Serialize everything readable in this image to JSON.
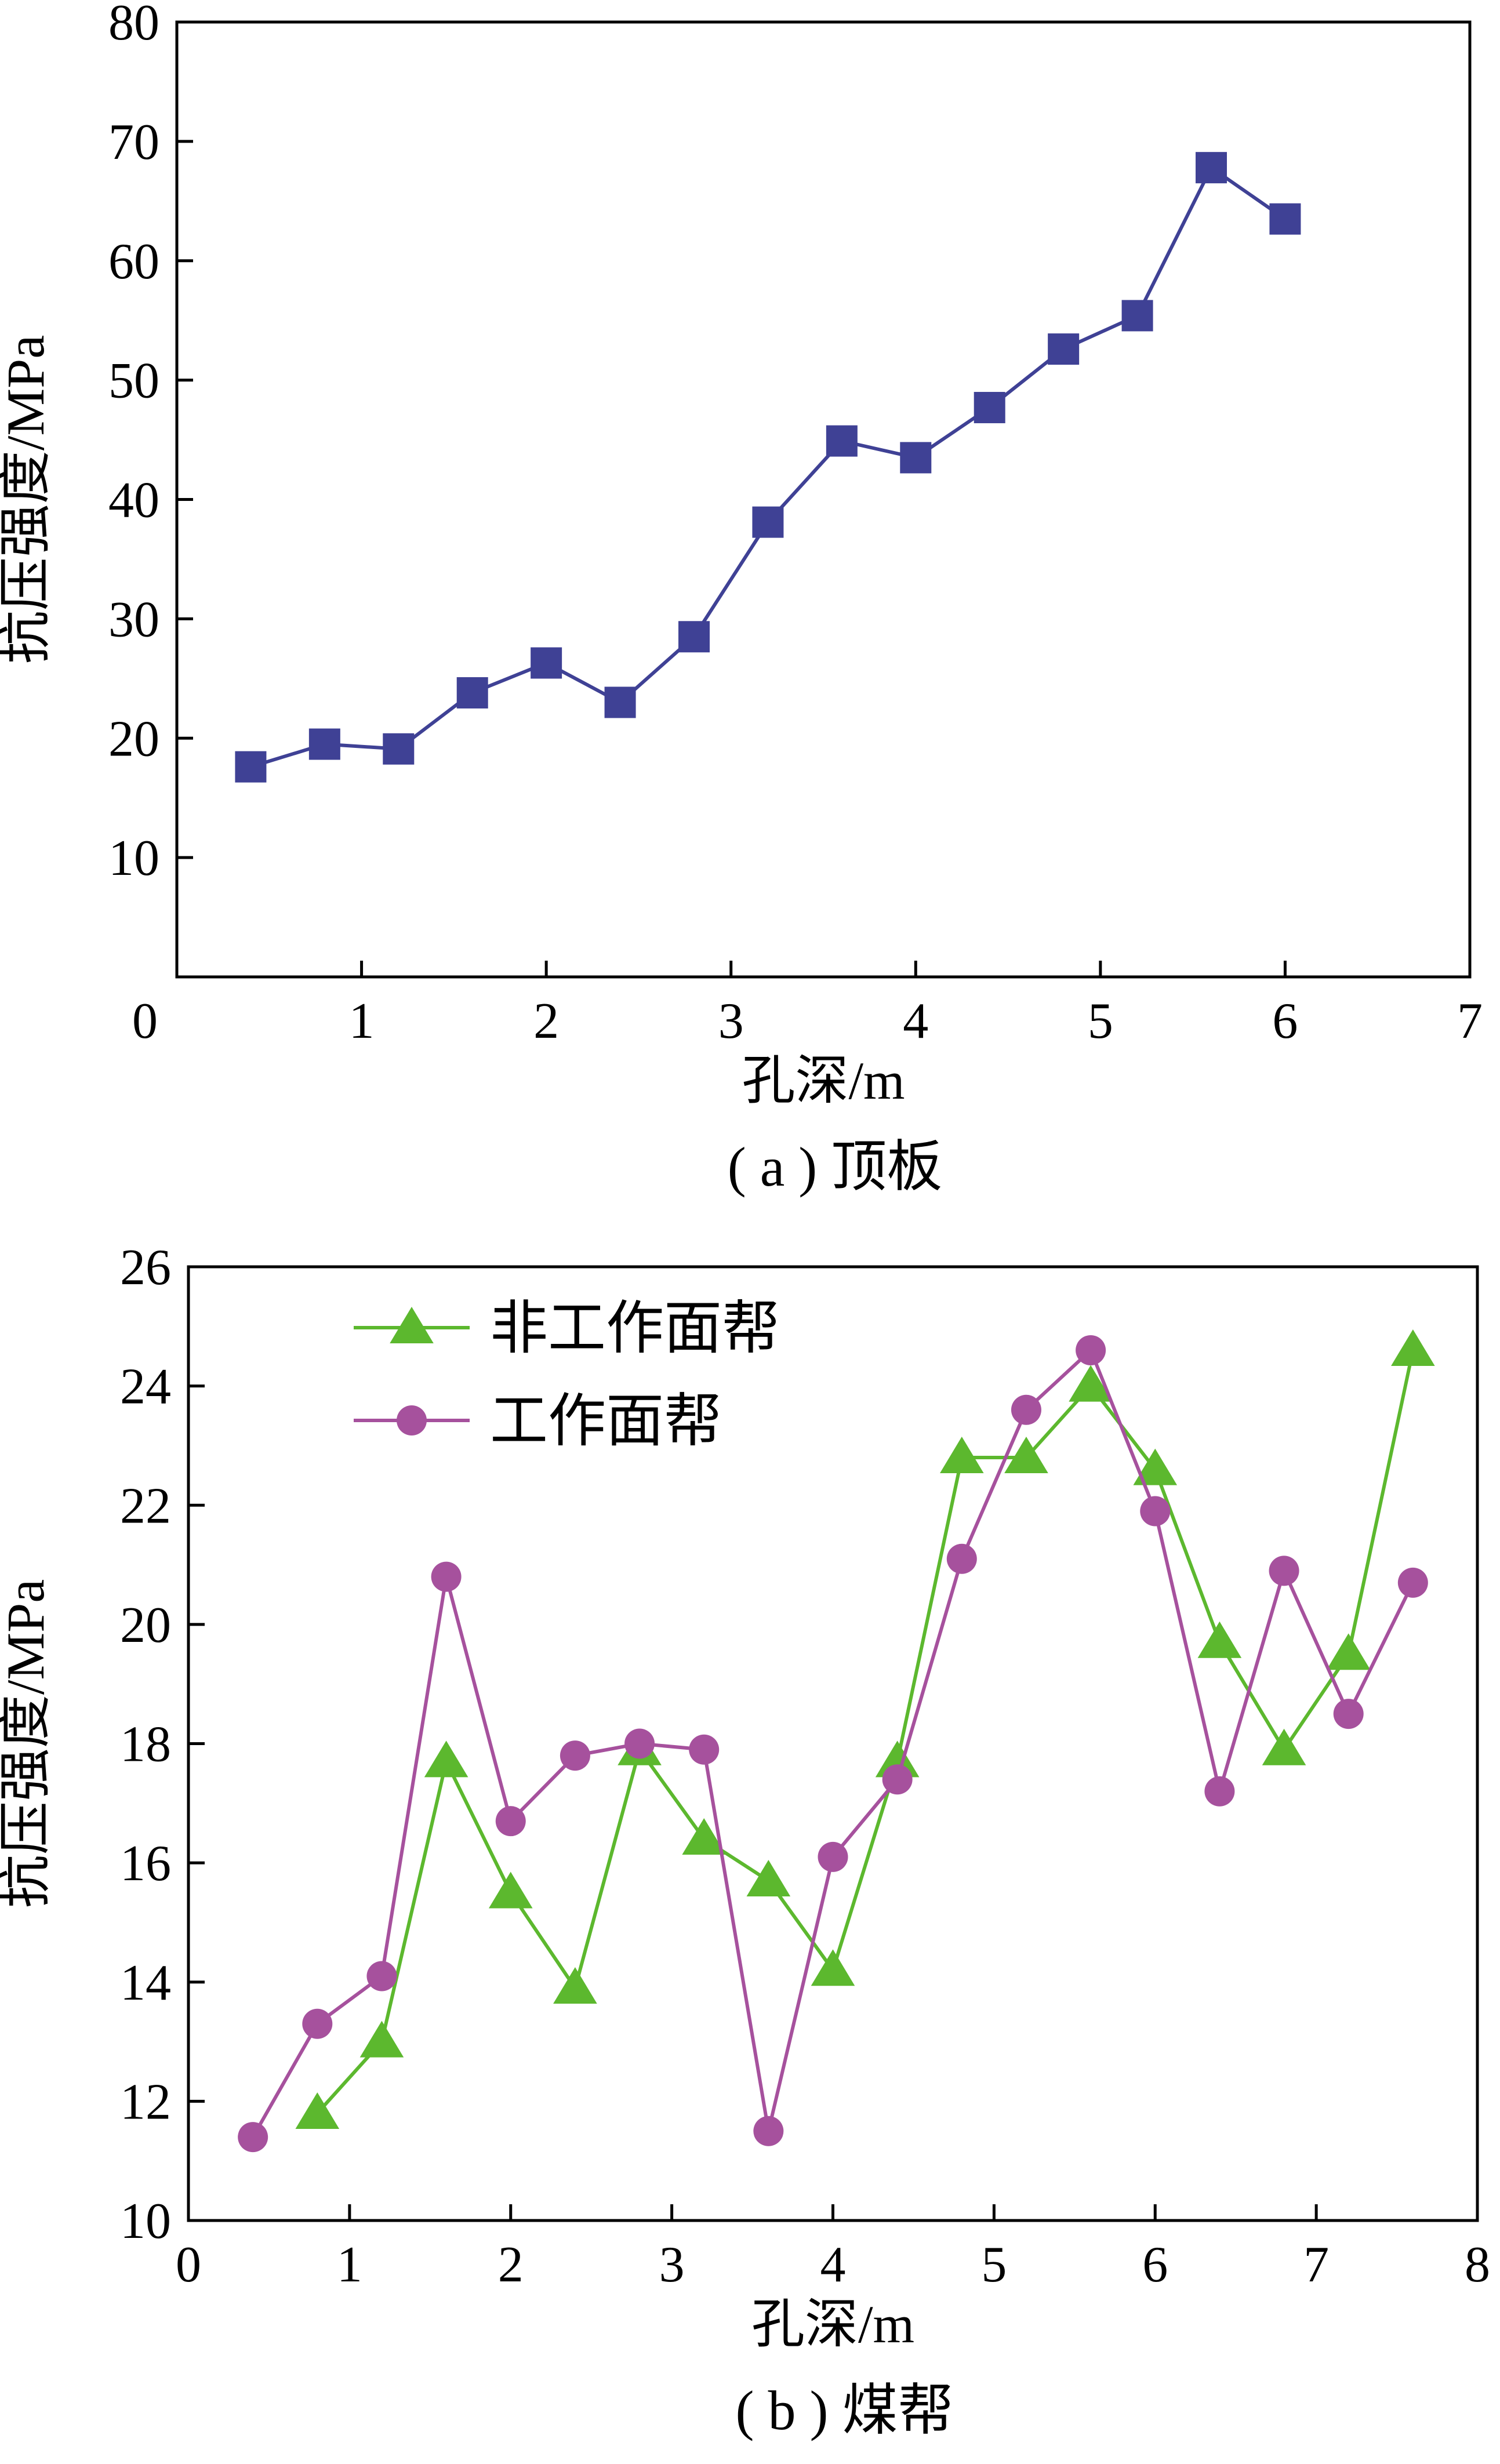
{
  "chart_data": [
    {
      "type": "line",
      "caption": "( a ) 顶板",
      "xlabel": "孔深/m",
      "ylabel": "抗压强度/MPa",
      "xlim": [
        0,
        7
      ],
      "ylim": [
        0,
        80
      ],
      "x_ticks": [
        "0",
        "1",
        "2",
        "3",
        "4",
        "5",
        "6",
        "7"
      ],
      "y_ticks": [
        "10",
        "20",
        "30",
        "40",
        "50",
        "60",
        "70",
        "80"
      ],
      "grid": false,
      "series": [
        {
          "color": "#3f4195",
          "marker": "square",
          "x": [
            0.4,
            0.8,
            1.2,
            1.6,
            2.0,
            2.4,
            2.8,
            3.2,
            3.6,
            4.0,
            4.4,
            4.8,
            5.2,
            5.6,
            6.0
          ],
          "y": [
            17.6,
            19.5,
            19.1,
            23.8,
            26.3,
            23.0,
            28.5,
            38.1,
            44.9,
            43.5,
            47.7,
            52.6,
            55.4,
            67.8,
            63.5
          ]
        }
      ]
    },
    {
      "type": "line",
      "caption": "( b ) 煤帮",
      "xlabel": "孔深/m",
      "ylabel": "抗压强度/MPa",
      "xlim": [
        0,
        8
      ],
      "ylim": [
        10,
        26
      ],
      "x_ticks": [
        "0",
        "1",
        "2",
        "3",
        "4",
        "5",
        "6",
        "7",
        "8"
      ],
      "y_ticks": [
        "10",
        "12",
        "14",
        "16",
        "18",
        "20",
        "22",
        "24",
        "26"
      ],
      "grid": false,
      "legend_position": "top-left",
      "series": [
        {
          "name": "非工作面帮",
          "color": "#5cb82e",
          "marker": "triangle",
          "x": [
            0.8,
            1.2,
            1.6,
            2.0,
            2.4,
            2.8,
            3.2,
            3.6,
            4.0,
            4.4,
            4.8,
            5.2,
            5.6,
            6.0,
            6.4,
            6.8,
            7.2,
            7.6
          ],
          "y": [
            11.8,
            13.0,
            17.7,
            15.5,
            13.9,
            17.9,
            16.4,
            15.7,
            14.2,
            17.7,
            22.8,
            22.8,
            24.0,
            22.6,
            19.7,
            17.9,
            19.5,
            24.6
          ]
        },
        {
          "name": "工作面帮",
          "color": "#a6519d",
          "marker": "circle",
          "x": [
            0.4,
            0.8,
            1.2,
            1.6,
            2.0,
            2.4,
            2.8,
            3.2,
            3.6,
            4.0,
            4.4,
            4.8,
            5.2,
            5.6,
            6.0,
            6.4,
            6.8,
            7.2,
            7.6
          ],
          "y": [
            11.4,
            13.3,
            14.1,
            20.8,
            16.7,
            17.8,
            18.0,
            17.9,
            11.5,
            16.1,
            17.4,
            21.1,
            23.6,
            24.6,
            21.9,
            17.2,
            20.9,
            18.5,
            20.7
          ]
        }
      ]
    }
  ]
}
